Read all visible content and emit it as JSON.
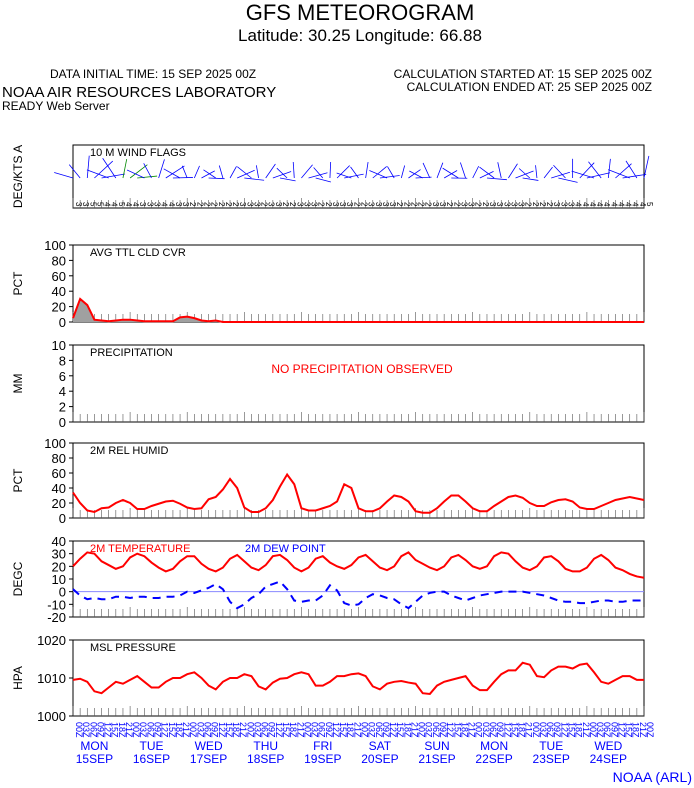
{
  "header": {
    "title": "GFS METEOROGRAM",
    "subtitle": "Latitude: 30.25 Longitude:  66.88",
    "data_time": "DATA INITIAL TIME: 15 SEP 2025 00Z",
    "calc_started": "CALCULATION STARTED AT: 15 SEP 2025 00Z",
    "calc_ended": "CALCULATION ENDED AT: 25 SEP 2025 00Z",
    "lab": "NOAA AIR RESOURCES LABORATORY",
    "server": "READY Web Server",
    "credit": "NOAA (ARL)"
  },
  "colors": {
    "series": "#ff0000",
    "dew": "#0000ff",
    "wind": "#0000ff",
    "axis": "#000000",
    "fill": "#a0a0a0"
  },
  "chart_data": [
    {
      "type": "wind-barbs",
      "panel_label": "10 M  WIND FLAGS",
      "ylabel": "DEG/KTS  A",
      "x": [
        0,
        3,
        6,
        9,
        12,
        15,
        18,
        21,
        24,
        27,
        30,
        33,
        36,
        39,
        42,
        45,
        48,
        51,
        54,
        57,
        60,
        63,
        66,
        69,
        72,
        75,
        78,
        81,
        84,
        87,
        90,
        93,
        96,
        99,
        102,
        105,
        108,
        111,
        114,
        117,
        120,
        123,
        126,
        129,
        132,
        135,
        138,
        141,
        144,
        147,
        150,
        153,
        156,
        159,
        162,
        165,
        168,
        171,
        174,
        177,
        180,
        183,
        186,
        189,
        192,
        195,
        198,
        201,
        204,
        207,
        210,
        213,
        216,
        219,
        222,
        225,
        228,
        231,
        234,
        237,
        240
      ],
      "speed_kts": [
        3,
        3,
        5,
        5,
        4,
        4,
        5,
        4,
        4,
        3,
        3,
        3,
        4,
        4,
        3,
        3,
        2,
        2,
        2,
        2,
        2,
        2,
        2,
        3,
        3,
        3,
        2,
        3,
        3,
        2,
        2,
        3,
        3,
        3,
        2,
        2,
        3,
        3,
        3,
        2,
        2,
        3,
        3,
        3,
        3,
        2,
        2,
        2,
        2,
        2,
        3,
        3,
        2,
        2,
        3,
        3,
        2,
        2,
        3,
        3,
        3,
        3,
        3,
        2,
        2,
        2,
        2,
        3,
        3,
        3,
        4,
        4,
        4,
        4,
        4,
        4,
        4,
        4,
        4,
        4,
        5
      ],
      "calm_note": "DEG/KTS"
    },
    {
      "type": "area",
      "panel_label": "AVG TTL CLD CVR",
      "ylabel": "PCT",
      "ylim": [
        0,
        100
      ],
      "yticks": [
        0,
        20,
        40,
        60,
        80,
        100
      ],
      "x": [
        0,
        3,
        6,
        9,
        12,
        15,
        18,
        21,
        24,
        27,
        30,
        33,
        36,
        39,
        42,
        45,
        48,
        51,
        54,
        57,
        60,
        63,
        66,
        69,
        72,
        75,
        78,
        81,
        84,
        87,
        90,
        93,
        96,
        99,
        102,
        105,
        108,
        111,
        114,
        117,
        120,
        123,
        126,
        129,
        132,
        135,
        138,
        141,
        144,
        147,
        150,
        153,
        156,
        159,
        162,
        165,
        168,
        171,
        174,
        177,
        180,
        183,
        186,
        189,
        192,
        195,
        198,
        201,
        204,
        207,
        210,
        213,
        216,
        219,
        222,
        225,
        228,
        231,
        234,
        237,
        240
      ],
      "values": [
        5,
        30,
        22,
        3,
        2,
        1,
        2,
        3,
        3,
        2,
        1,
        1,
        1,
        1,
        1,
        6,
        7,
        5,
        2,
        1,
        2,
        0,
        0,
        0,
        0,
        0,
        0,
        0,
        0,
        0,
        0,
        0,
        0,
        0,
        0,
        0,
        0,
        0,
        0,
        0,
        0,
        0,
        0,
        0,
        0,
        0,
        0,
        0,
        0,
        0,
        0,
        0,
        0,
        0,
        0,
        0,
        0,
        0,
        0,
        0,
        0,
        0,
        0,
        0,
        0,
        0,
        0,
        0,
        0,
        0,
        0,
        0,
        0,
        0,
        0,
        0,
        0,
        0,
        0,
        0,
        0
      ]
    },
    {
      "type": "bar",
      "panel_label": "PRECIPITATION",
      "ylabel": "MM",
      "ylim": [
        0,
        10
      ],
      "yticks": [
        0,
        2,
        4,
        6,
        8,
        10
      ],
      "note": "NO PRECIPITATION OBSERVED",
      "values": []
    },
    {
      "type": "line",
      "panel_label": "2M REL HUMID",
      "ylabel": "PCT",
      "ylim": [
        0,
        100
      ],
      "yticks": [
        0,
        20,
        40,
        60,
        80,
        100
      ],
      "x": [
        0,
        3,
        6,
        9,
        12,
        15,
        18,
        21,
        24,
        27,
        30,
        33,
        36,
        39,
        42,
        45,
        48,
        51,
        54,
        57,
        60,
        63,
        66,
        69,
        72,
        75,
        78,
        81,
        84,
        87,
        90,
        93,
        96,
        99,
        102,
        105,
        108,
        111,
        114,
        117,
        120,
        123,
        126,
        129,
        132,
        135,
        138,
        141,
        144,
        147,
        150,
        153,
        156,
        159,
        162,
        165,
        168,
        171,
        174,
        177,
        180,
        183,
        186,
        189,
        192,
        195,
        198,
        201,
        204,
        207,
        210,
        213,
        216,
        219,
        222,
        225,
        228,
        231,
        234,
        237,
        240
      ],
      "values": [
        34,
        20,
        10,
        8,
        13,
        14,
        20,
        24,
        20,
        12,
        12,
        16,
        19,
        22,
        23,
        19,
        14,
        12,
        13,
        25,
        28,
        38,
        52,
        40,
        14,
        8,
        8,
        13,
        24,
        42,
        58,
        45,
        13,
        10,
        10,
        13,
        16,
        22,
        45,
        40,
        13,
        9,
        9,
        13,
        22,
        30,
        28,
        22,
        9,
        7,
        7,
        13,
        22,
        30,
        30,
        22,
        13,
        9,
        9,
        16,
        22,
        28,
        30,
        27,
        20,
        16,
        16,
        21,
        24,
        25,
        22,
        14,
        12,
        12,
        16,
        20,
        24,
        26,
        28,
        26,
        24
      ]
    },
    {
      "type": "line",
      "panel_label": "2M TEMPERATURE",
      "panel_label_2": "2M   DEW POINT",
      "ylabel": "DEGC",
      "ylim": [
        -20,
        40
      ],
      "yticks": [
        -20,
        -10,
        0,
        10,
        20,
        30,
        40
      ],
      "x": [
        0,
        3,
        6,
        9,
        12,
        15,
        18,
        21,
        24,
        27,
        30,
        33,
        36,
        39,
        42,
        45,
        48,
        51,
        54,
        57,
        60,
        63,
        66,
        69,
        72,
        75,
        78,
        81,
        84,
        87,
        90,
        93,
        96,
        99,
        102,
        105,
        108,
        111,
        114,
        117,
        120,
        123,
        126,
        129,
        132,
        135,
        138,
        141,
        144,
        147,
        150,
        153,
        156,
        159,
        162,
        165,
        168,
        171,
        174,
        177,
        180,
        183,
        186,
        189,
        192,
        195,
        198,
        201,
        204,
        207,
        210,
        213,
        216,
        219,
        222,
        225,
        228,
        231,
        234,
        237,
        240
      ],
      "series": [
        {
          "name": "2M TEMPERATURE",
          "values": [
            20,
            26,
            31,
            30,
            24,
            21,
            18,
            20,
            27,
            30,
            28,
            23,
            19,
            16,
            18,
            24,
            28,
            28,
            22,
            18,
            16,
            19,
            26,
            29,
            24,
            19,
            17,
            21,
            28,
            29,
            25,
            19,
            16,
            19,
            26,
            28,
            23,
            20,
            18,
            21,
            27,
            29,
            24,
            19,
            17,
            20,
            28,
            31,
            25,
            22,
            19,
            17,
            20,
            27,
            29,
            25,
            20,
            18,
            20,
            28,
            31,
            30,
            24,
            19,
            17,
            20,
            27,
            28,
            24,
            18,
            16,
            16,
            19,
            26,
            29,
            25,
            19,
            17,
            14,
            12,
            11
          ]
        },
        {
          "name": "2M   DEW POINT",
          "values": [
            2,
            -3,
            -6,
            -5,
            -6,
            -6,
            -4,
            -4,
            -5,
            -4,
            -4,
            -5,
            -5,
            -4,
            -4,
            -3,
            0,
            -1,
            1,
            3,
            6,
            2,
            -8,
            -13,
            -10,
            -5,
            -2,
            4,
            6,
            8,
            2,
            -7,
            -8,
            -7,
            -7,
            -3,
            5,
            1,
            -9,
            -11,
            -10,
            -5,
            -2,
            -3,
            -5,
            -6,
            -10,
            -13,
            -8,
            -3,
            -1,
            0,
            0,
            -3,
            -5,
            -7,
            -5,
            -3,
            -2,
            -1,
            0,
            0,
            0,
            0,
            -1,
            -2,
            -3,
            -5,
            -7,
            -8,
            -8,
            -9,
            -9,
            -8,
            -7,
            -7,
            -8,
            -8,
            -7,
            -7,
            -7
          ]
        }
      ]
    },
    {
      "type": "line",
      "panel_label": "MSL PRESSURE",
      "ylabel": "HPA",
      "ylim": [
        1000,
        1020
      ],
      "yticks": [
        1000,
        1010,
        1020
      ],
      "x": [
        0,
        3,
        6,
        9,
        12,
        15,
        18,
        21,
        24,
        27,
        30,
        33,
        36,
        39,
        42,
        45,
        48,
        51,
        54,
        57,
        60,
        63,
        66,
        69,
        72,
        75,
        78,
        81,
        84,
        87,
        90,
        93,
        96,
        99,
        102,
        105,
        108,
        111,
        114,
        117,
        120,
        123,
        126,
        129,
        132,
        135,
        138,
        141,
        144,
        147,
        150,
        153,
        156,
        159,
        162,
        165,
        168,
        171,
        174,
        177,
        180,
        183,
        186,
        189,
        192,
        195,
        198,
        201,
        204,
        207,
        210,
        213,
        216,
        219,
        222,
        225,
        228,
        231,
        234,
        237,
        240
      ],
      "values": [
        1009.5,
        1009.8,
        1009,
        1006.5,
        1006,
        1007.5,
        1009,
        1008.5,
        1009.5,
        1010.5,
        1009,
        1007.5,
        1007.5,
        1009,
        1010,
        1010,
        1011,
        1011.5,
        1010,
        1008,
        1007,
        1009,
        1010,
        1010,
        1011,
        1010.5,
        1007.8,
        1007,
        1008.8,
        1009.8,
        1010,
        1011,
        1011.5,
        1011,
        1008,
        1008,
        1009,
        1010.5,
        1010.5,
        1011,
        1011.2,
        1010.5,
        1007.8,
        1007,
        1008.5,
        1009,
        1009.2,
        1008.8,
        1008.5,
        1006,
        1005.8,
        1008,
        1009,
        1009.5,
        1010,
        1010.5,
        1008,
        1006.8,
        1006.8,
        1009,
        1011,
        1012,
        1012,
        1014,
        1013.5,
        1010.5,
        1010.2,
        1012,
        1013,
        1013,
        1012.5,
        1013.5,
        1013.8,
        1011.5,
        1009,
        1008.5,
        1009.5,
        1010.5,
        1010.5,
        1009.5,
        1009.5
      ]
    }
  ],
  "date_axis": {
    "hour_labels_every_3h": [
      "00",
      "03",
      "06",
      "09",
      "12",
      "15",
      "18",
      "21"
    ],
    "days": [
      {
        "dow": "MON",
        "date": "15SEP"
      },
      {
        "dow": "TUE",
        "date": "16SEP"
      },
      {
        "dow": "WED",
        "date": "17SEP"
      },
      {
        "dow": "THU",
        "date": "18SEP"
      },
      {
        "dow": "FRI",
        "date": "19SEP"
      },
      {
        "dow": "SAT",
        "date": "20SEP"
      },
      {
        "dow": "SUN",
        "date": "21SEP"
      },
      {
        "dow": "MON",
        "date": "22SEP"
      },
      {
        "dow": "TUE",
        "date": "23SEP"
      },
      {
        "dow": "WED",
        "date": "24SEP"
      }
    ]
  }
}
